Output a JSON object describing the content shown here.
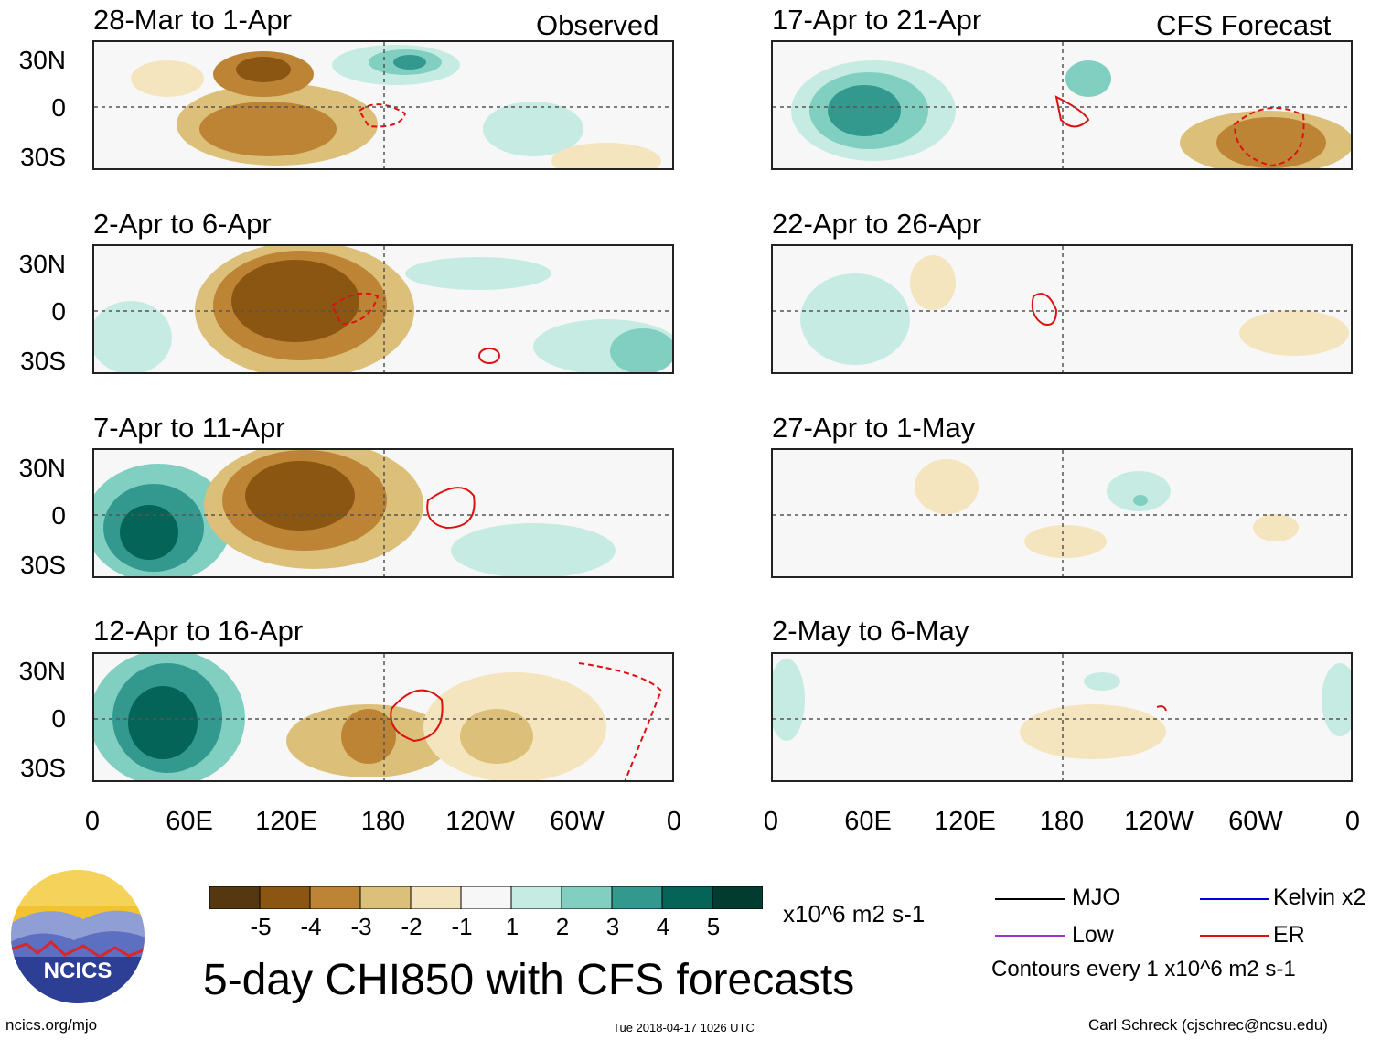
{
  "columns": {
    "left_label": "Observed",
    "right_label": "CFS Forecast"
  },
  "panels": {
    "left": [
      {
        "title": "28-Mar to 1-Apr"
      },
      {
        "title": "2-Apr to 6-Apr"
      },
      {
        "title": "7-Apr to 11-Apr"
      },
      {
        "title": "12-Apr to 16-Apr"
      }
    ],
    "right": [
      {
        "title": "17-Apr to 21-Apr"
      },
      {
        "title": "22-Apr to 26-Apr"
      },
      {
        "title": "27-Apr to 1-May"
      },
      {
        "title": "2-May to 6-May"
      }
    ]
  },
  "axes": {
    "lat_labels": [
      "30N",
      "0",
      "30S"
    ],
    "lon_labels": [
      "0",
      "60E",
      "120E",
      "180",
      "120W",
      "60W",
      "0"
    ]
  },
  "colorbar": {
    "ticks": [
      "-5",
      "-4",
      "-3",
      "-2",
      "-1",
      "1",
      "2",
      "3",
      "4",
      "5"
    ],
    "colors": [
      "#553810",
      "#8a5612",
      "#bd8435",
      "#dcbf78",
      "#f5e5bf",
      "#f7f7f7",
      "#c6ebe3",
      "#80cfc1",
      "#33998f",
      "#046458",
      "#023b30"
    ],
    "units": "x10^6 m2 s-1"
  },
  "title": "5-day CHI850 with CFS forecasts",
  "legend": {
    "items": [
      {
        "label": "MJO",
        "color": "#000000"
      },
      {
        "label": "Kelvin x2",
        "color": "#0000cc"
      },
      {
        "label": "Low",
        "color": "#9933cc"
      },
      {
        "label": "ER",
        "color": "#dd1111"
      }
    ],
    "note": "Contours every 1 x10^6 m2 s-1"
  },
  "footer": {
    "logo_text": "NCICS",
    "url": "ncics.org/mjo",
    "timestamp": "Tue 2018-04-17 1026 UTC",
    "author": "Carl Schreck (cjschrec@ncsu.edu)"
  }
}
